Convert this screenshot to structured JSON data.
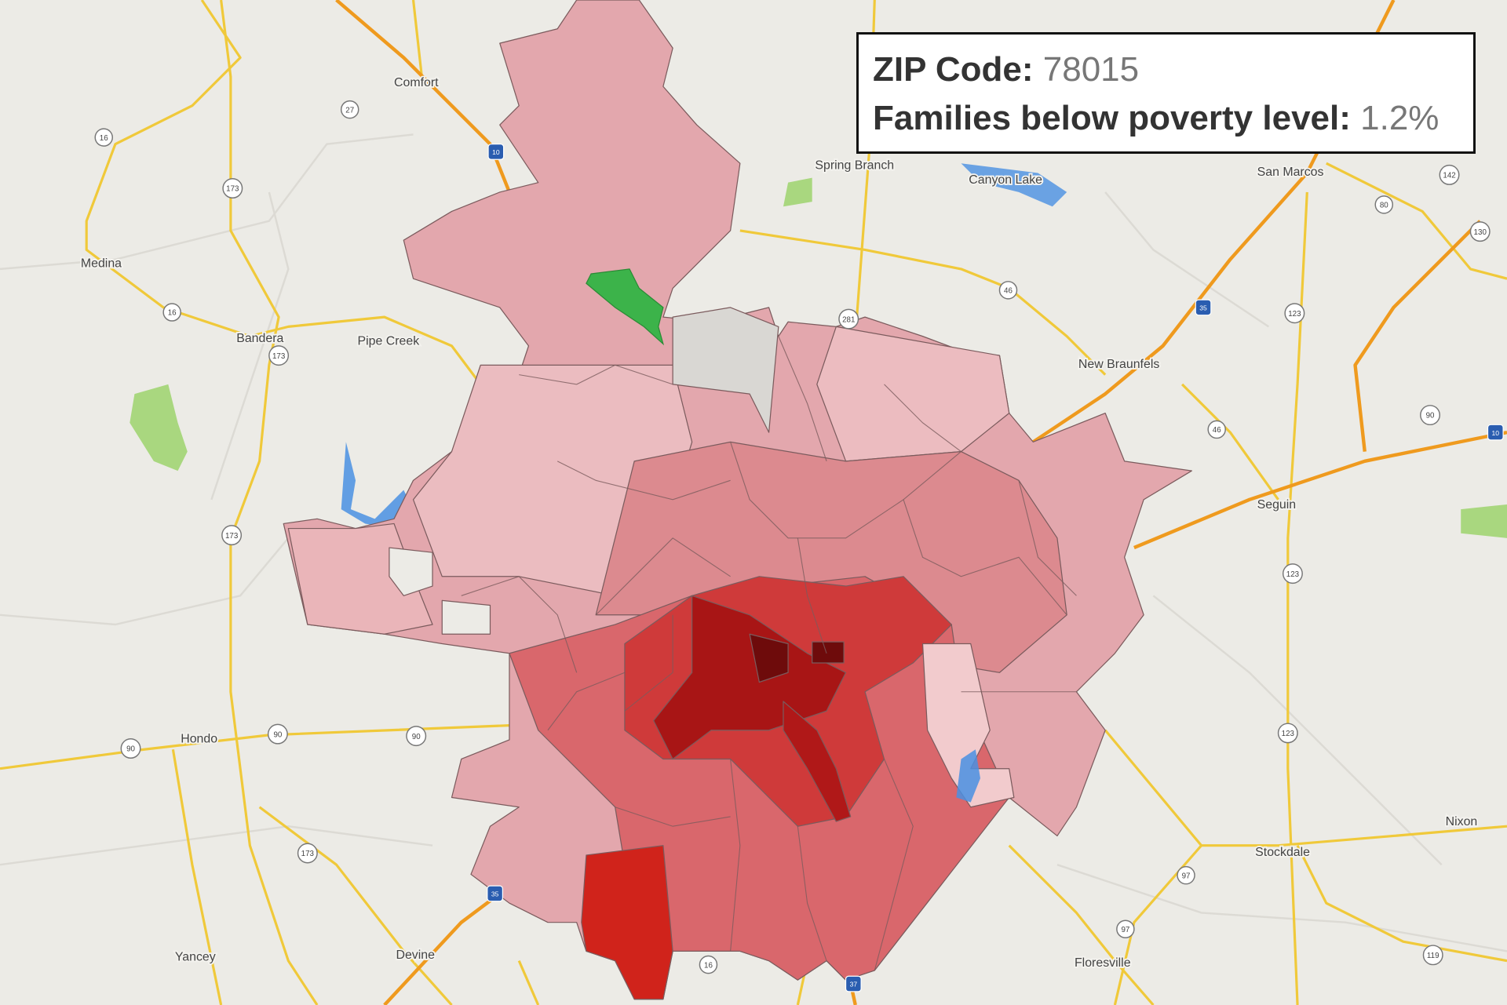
{
  "tooltip": {
    "zip_label": "ZIP Code:",
    "zip_value": "78015",
    "metric_label": "Families below poverty level:",
    "metric_value": "1.2%"
  },
  "colors": {
    "background": "#ecebe6",
    "highlight_zip": "#3cb34a",
    "no_data": "#d9d7d3",
    "scale_light": "#f2cbcd",
    "scale_dark": "#6e0b0b",
    "interstate": "#ef9a1e",
    "highway": "#f0c93a",
    "water": "#4a90e2"
  },
  "towns": {
    "comfort": "Comfort",
    "medina": "Medina",
    "bandera": "Bandera",
    "pipe_creek": "Pipe Creek",
    "spring_branch": "Spring Branch",
    "canyon_lake": "Canyon Lake",
    "san_marcos": "San Marcos",
    "new_braunfels": "New Braunfels",
    "seguin": "Seguin",
    "hondo": "Hondo",
    "stockdale": "Stockdale",
    "nixon": "Nixon",
    "floresville": "Floresville",
    "devine": "Devine",
    "yancey": "Yancey"
  },
  "shields": {
    "r16a": "16",
    "r16b": "16",
    "r173a": "173",
    "r173b": "173",
    "r173c": "173",
    "r173d": "173",
    "r27": "27",
    "r281": "281",
    "r46a": "46",
    "r46b": "46",
    "r90a": "90",
    "r90b": "90",
    "r90c": "90",
    "r90d": "90",
    "r123a": "123",
    "r123b": "123",
    "r123c": "123",
    "r80": "80",
    "r142": "142",
    "r130": "130",
    "r97a": "97",
    "r97b": "97",
    "r16c": "16",
    "r119": "119",
    "i10a": "10",
    "i35a": "35",
    "i35b": "35",
    "i37": "37",
    "i10b": "10"
  }
}
